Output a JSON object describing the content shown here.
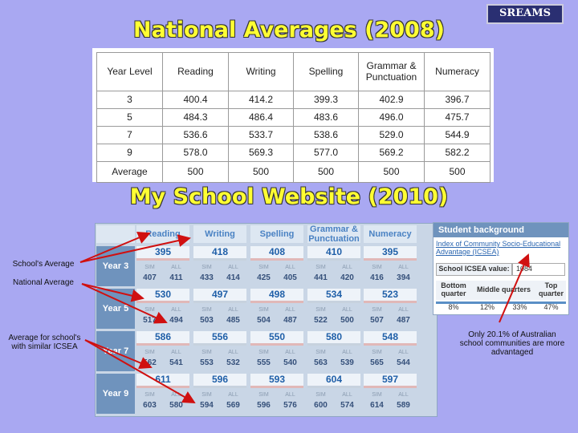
{
  "header": {
    "title": "National Averages (2008)",
    "logo": "SREAMS"
  },
  "national_table": {
    "columns": [
      "Year Level",
      "Reading",
      "Writing",
      "Spelling",
      "Grammar & Punctuation",
      "Numeracy"
    ],
    "rows": [
      [
        "3",
        "400.4",
        "414.2",
        "399.3",
        "402.9",
        "396.7"
      ],
      [
        "5",
        "484.3",
        "486.4",
        "483.6",
        "496.0",
        "475.7"
      ],
      [
        "7",
        "536.6",
        "533.7",
        "538.6",
        "529.0",
        "544.9"
      ],
      [
        "9",
        "578.0",
        "569.3",
        "577.0",
        "569.2",
        "582.2"
      ],
      [
        "Average",
        "500",
        "500",
        "500",
        "500",
        "500"
      ]
    ]
  },
  "my_school": {
    "title": "My School Website (2010)",
    "columns": [
      "Reading",
      "Writing",
      "Spelling",
      "Grammar & Punctuation",
      "Numeracy"
    ],
    "sim_label": "SIM",
    "all_label": "ALL",
    "years": [
      {
        "label": "Year 3",
        "school": [
          "395",
          "418",
          "408",
          "410",
          "395"
        ],
        "sim": [
          "407",
          "433",
          "425",
          "441",
          "416"
        ],
        "all": [
          "411",
          "414",
          "405",
          "420",
          "394"
        ]
      },
      {
        "label": "Year 5",
        "school": [
          "530",
          "497",
          "498",
          "534",
          "523"
        ],
        "sim": [
          "517",
          "503",
          "504",
          "522",
          "507"
        ],
        "all": [
          "494",
          "485",
          "487",
          "500",
          "487"
        ]
      },
      {
        "label": "Year 7",
        "school": [
          "586",
          "556",
          "550",
          "580",
          "548"
        ],
        "sim": [
          "562",
          "553",
          "555",
          "563",
          "565"
        ],
        "all": [
          "541",
          "532",
          "540",
          "539",
          "544"
        ]
      },
      {
        "label": "Year 9",
        "school": [
          "611",
          "596",
          "593",
          "604",
          "597"
        ],
        "sim": [
          "603",
          "594",
          "596",
          "600",
          "614"
        ],
        "all": [
          "580",
          "569",
          "576",
          "574",
          "589"
        ]
      }
    ]
  },
  "student_background": {
    "title": "Student background",
    "index_name": "Index of Community Socio-Educational Advantage (ICSEA)",
    "value_label": "School ICSEA value:",
    "value": "1084",
    "quarter_headers": [
      "Bottom quarter",
      "Middle quarters",
      "Top quarter"
    ],
    "quarter_values": [
      "8%",
      "12%",
      "33%",
      "47%"
    ]
  },
  "annotations": {
    "school_average": "School's Average",
    "national_average": "National Average",
    "similar_average": "Average for school's with similar ICSEA",
    "advantaged": "Only 20.1% of Australian school communities are more advantaged"
  }
}
